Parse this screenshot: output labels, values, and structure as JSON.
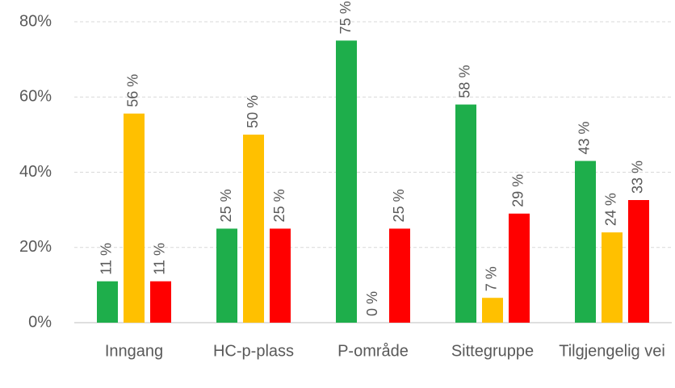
{
  "chart_data": {
    "type": "bar",
    "categories": [
      "Inngang",
      "HC-p-plass",
      "P-område",
      "Sittegruppe",
      "Tilgjengelig vei"
    ],
    "series": [
      {
        "color": "#1eae4b",
        "values": [
          11,
          25,
          75,
          58,
          43
        ],
        "value_labels": [
          "11 %",
          "25 %",
          "75 %",
          "58 %",
          "43 %"
        ]
      },
      {
        "color": "#ffc000",
        "values": [
          55.6,
          50,
          0,
          6.6,
          24
        ],
        "value_labels": [
          "56 %",
          "50 %",
          "0 %",
          "7 %",
          "24 %"
        ]
      },
      {
        "color": "#ff0000",
        "values": [
          11,
          25,
          25,
          29,
          32.6
        ],
        "value_labels": [
          "11 %",
          "25 %",
          "25 %",
          "29 %",
          "33 %"
        ]
      }
    ],
    "ylim": [
      0,
      80
    ],
    "yticks": [
      {
        "value": 0,
        "label": "0%"
      },
      {
        "value": 20,
        "label": "20%"
      },
      {
        "value": 40,
        "label": "40%"
      },
      {
        "value": 60,
        "label": "60%"
      },
      {
        "value": 80,
        "label": "80%"
      }
    ],
    "grid": true
  }
}
